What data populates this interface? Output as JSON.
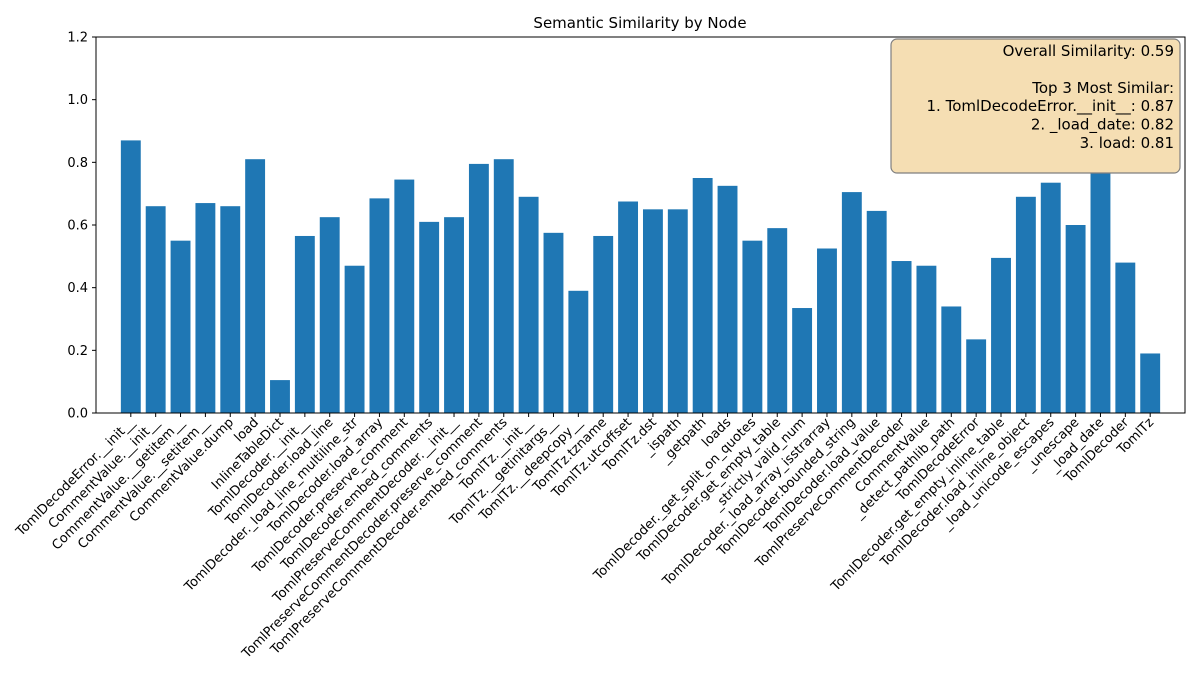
{
  "chart_data": {
    "type": "bar",
    "title": "Semantic Similarity by Node",
    "xlabel": "",
    "ylabel": "",
    "ylim": [
      0,
      1.2
    ],
    "yticks": [
      0.0,
      0.2,
      0.4,
      0.6,
      0.8,
      1.0,
      1.2
    ],
    "ytick_labels": [
      "0.0",
      "0.2",
      "0.4",
      "0.6",
      "0.8",
      "1.0",
      "1.2"
    ],
    "grid": false,
    "bar_color": "#1f77b4",
    "categories": [
      "TomlDecodeError.__init__",
      "CommentValue.__init__",
      "CommentValue.__getitem__",
      "CommentValue.__setitem__",
      "CommentValue.dump",
      "load",
      "InlineTableDict",
      "TomlDecoder.__init__",
      "TomlDecoder.load_line",
      "TomlDecoder._load_line_multiline_str",
      "TomlDecoder.load_array",
      "TomlDecoder.preserve_comment",
      "TomlDecoder.embed_comments",
      "TomlPreserveCommentDecoder.__init__",
      "TomlPreserveCommentDecoder.preserve_comment",
      "TomlPreserveCommentDecoder.embed_comments",
      "TomlTz.__init__",
      "TomlTz.__getinitargs__",
      "TomlTz.__deepcopy__",
      "TomlTz.tzname",
      "TomlTz.utcoffset",
      "TomlTz.dst",
      "_ispath",
      "_getpath",
      "loads",
      "TomlDecoder._get_split_on_quotes",
      "TomlDecoder.get_empty_table",
      "_strictly_valid_num",
      "TomlDecoder._load_array_isstrarray",
      "TomlDecoder.bounded_string",
      "TomlDecoder.load_value",
      "TomlPreserveCommentDecoder",
      "CommentValue",
      "_detect_pathlib_path",
      "TomlDecodeError",
      "TomlDecoder.get_empty_inline_table",
      "TomlDecoder.load_inline_object",
      "_load_unicode_escapes",
      "_unescape",
      "_load_date",
      "TomlDecoder",
      "TomlTz"
    ],
    "values": [
      0.87,
      0.66,
      0.55,
      0.67,
      0.66,
      0.81,
      0.105,
      0.565,
      0.625,
      0.47,
      0.685,
      0.745,
      0.61,
      0.625,
      0.795,
      0.81,
      0.69,
      0.575,
      0.39,
      0.565,
      0.675,
      0.65,
      0.65,
      0.75,
      0.725,
      0.55,
      0.59,
      0.335,
      0.525,
      0.705,
      0.645,
      0.485,
      0.47,
      0.34,
      0.235,
      0.495,
      0.69,
      0.735,
      0.6,
      0.82,
      0.48,
      0.19
    ],
    "annotation": {
      "lines": [
        "Overall Similarity: 0.59",
        "",
        "Top 3 Most Similar:",
        "1. TomlDecodeError.__init__: 0.87",
        "2. _load_date: 0.82",
        "3. load: 0.81"
      ],
      "placement": "top-right",
      "background": "#f5deb3",
      "border": "#7f7f7f"
    }
  }
}
